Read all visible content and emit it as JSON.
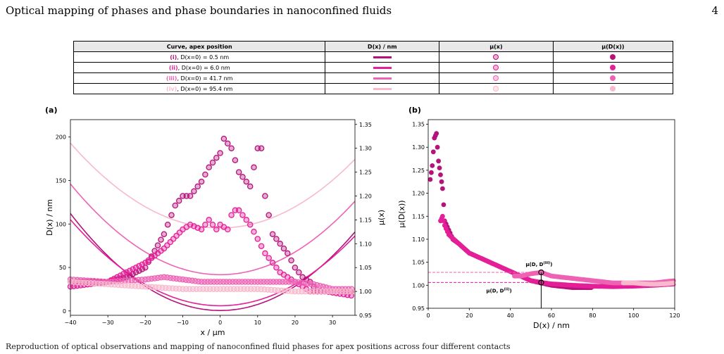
{
  "header": {
    "title": "Optical mapping of phases and phase boundaries in nanoconfined fluids",
    "page_number": "4"
  },
  "legend_table": {
    "columns": [
      "Curve, apex position",
      "D(x) / nm",
      "μ(x)",
      "μ(D(x))"
    ],
    "rows": [
      {
        "tag": "(i)",
        "text": ", D(x=0) = 0.5 nm",
        "color": "#b5127a"
      },
      {
        "tag": "(ii)",
        "text": ", D(x=0) = 6.0 nm",
        "color": "#e41f97"
      },
      {
        "tag": "(iii)",
        "text": ", D(x=0) = 41.7 nm",
        "color": "#ee62b4"
      },
      {
        "tag": "(iv)",
        "text": ", D(x=0) = 95.4 nm",
        "color": "#f8b9cd"
      }
    ]
  },
  "chart_data": [
    {
      "type": "line+scatter",
      "panel_label": "(a)",
      "xlabel": "x / μm",
      "ylabel": "D(x) / nm",
      "y2label": "μ(x)",
      "xlim": [
        -40,
        36
      ],
      "ylim": [
        -5,
        220
      ],
      "y2lim": [
        0.95,
        1.36
      ],
      "xticks": [
        "−40",
        "−30",
        "−20",
        "−10",
        "0",
        "10",
        "20",
        "30"
      ],
      "yticks": [
        "0",
        "50",
        "100",
        "150",
        "200"
      ],
      "y2ticks": [
        "0.95",
        "1.00",
        "1.05",
        "1.10",
        "1.15",
        "1.20",
        "1.25",
        "1.30",
        "1.35"
      ],
      "lines": [
        {
          "tag": "(i)",
          "apex": 0.5,
          "y_at_minus40": 112
        },
        {
          "tag": "(ii)",
          "apex": 6.0,
          "y_at_minus40": 105
        },
        {
          "tag": "(iii)",
          "apex": 41.7,
          "y_at_minus40": 146
        },
        {
          "tag": "(iv)",
          "apex": 95.4,
          "y_at_minus40": 193
        }
      ],
      "scatter": [
        {
          "tag": "(i)",
          "x": [
            -40,
            -30,
            -25,
            -20,
            -15,
            -12,
            -10,
            -8,
            -5,
            -3,
            0,
            1,
            2,
            3,
            5,
            8,
            10,
            11,
            12,
            14,
            16,
            18,
            20,
            22,
            24,
            26,
            28,
            30,
            33,
            36
          ],
          "y": [
            1.02,
            1.02,
            1.03,
            1.05,
            1.12,
            1.18,
            1.2,
            1.2,
            1.23,
            1.26,
            1.29,
            1.32,
            1.31,
            1.3,
            1.25,
            1.22,
            1.3,
            1.3,
            1.2,
            1.12,
            1.1,
            1.08,
            1.05,
            1.03,
            1.02,
            1.0,
            1.0,
            1.0,
            1.0,
            1.0
          ]
        },
        {
          "tag": "(ii)",
          "x": [
            -40,
            -30,
            -25,
            -20,
            -15,
            -10,
            -8,
            -5,
            -3,
            -1,
            0,
            2,
            3,
            4,
            5,
            6,
            8,
            10,
            12,
            14,
            16,
            18,
            20,
            22,
            24,
            28,
            32,
            36
          ],
          "y": [
            1.01,
            1.02,
            1.04,
            1.06,
            1.09,
            1.13,
            1.14,
            1.13,
            1.15,
            1.13,
            1.14,
            1.13,
            1.16,
            1.17,
            1.17,
            1.16,
            1.14,
            1.11,
            1.08,
            1.06,
            1.04,
            1.03,
            1.02,
            1.01,
            1.0,
            1.0,
            0.995,
            0.99
          ]
        },
        {
          "tag": "(iii)",
          "x": [
            -40,
            -30,
            -20,
            -15,
            -10,
            -5,
            0,
            5,
            10,
            15,
            20,
            25,
            30,
            36
          ],
          "y": [
            1.025,
            1.02,
            1.025,
            1.03,
            1.025,
            1.02,
            1.02,
            1.02,
            1.02,
            1.02,
            1.02,
            1.015,
            1.005,
            1.005
          ]
        },
        {
          "tag": "(iv)",
          "x": [
            -40,
            -30,
            -20,
            -10,
            0,
            10,
            20,
            30,
            36
          ],
          "y": [
            1.02,
            1.015,
            1.01,
            1.005,
            1.005,
            1.005,
            1.0,
            1.0,
            1.0
          ]
        }
      ]
    },
    {
      "type": "scatter",
      "panel_label": "(b)",
      "xlabel": "D(x) / nm",
      "ylabel": "μ(D(x))",
      "xlim": [
        0,
        120
      ],
      "ylim": [
        0.95,
        1.36
      ],
      "xticks": [
        "0",
        "20",
        "40",
        "60",
        "80",
        "100",
        "120"
      ],
      "yticks": [
        "0.95",
        "1.00",
        "1.05",
        "1.10",
        "1.15",
        "1.20",
        "1.25",
        "1.30",
        "1.35"
      ],
      "annotations": [
        {
          "text": "μ(D, D",
          "sup": "(iii)",
          "x": 55,
          "y": 1.028
        },
        {
          "text": "μ(D, D",
          "sup": "(ii)",
          "x": 55,
          "y": 1.006
        }
      ],
      "scatter": [
        {
          "tag": "(i)",
          "x": [
            1,
            2,
            3,
            4,
            5,
            6,
            7,
            8,
            10,
            12,
            15,
            20,
            25,
            30,
            35,
            40,
            50,
            60,
            70,
            80
          ],
          "y": [
            1.23,
            1.26,
            1.32,
            1.33,
            1.27,
            1.24,
            1.21,
            1.14,
            1.12,
            1.1,
            1.09,
            1.07,
            1.06,
            1.05,
            1.04,
            1.03,
            1.01,
            1.0,
            0.995,
            0.995
          ]
        },
        {
          "tag": "(ii)",
          "x": [
            6,
            7,
            8,
            10,
            15,
            20,
            25,
            30,
            35,
            40,
            45,
            50,
            55,
            60,
            70,
            80,
            90,
            100,
            110,
            120
          ],
          "y": [
            1.14,
            1.15,
            1.13,
            1.11,
            1.09,
            1.07,
            1.06,
            1.05,
            1.04,
            1.03,
            1.02,
            1.01,
            1.006,
            1.003,
            1.0,
            0.998,
            0.997,
            0.998,
            1.0,
            1.003
          ]
        },
        {
          "tag": "(iii)",
          "x": [
            42,
            45,
            50,
            55,
            60,
            70,
            80,
            90,
            100,
            110,
            120
          ],
          "y": [
            1.02,
            1.02,
            1.025,
            1.028,
            1.02,
            1.015,
            1.01,
            1.005,
            1.005,
            1.005,
            1.01
          ]
        },
        {
          "tag": "(iv)",
          "x": [
            95,
            100,
            105,
            110,
            115,
            120
          ],
          "y": [
            1.005,
            1.005,
            1.003,
            1.002,
            1.003,
            1.005
          ]
        }
      ]
    }
  ],
  "caption": "Reproduction of optical observations and mapping of nanoconfined fluid phases for apex positions across four different contacts"
}
